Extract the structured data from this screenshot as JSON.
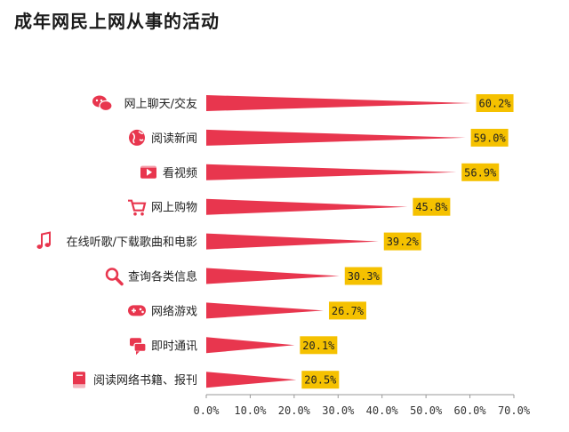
{
  "title": "成年网民上网从事的活动",
  "colors": {
    "bar": "#e8364e",
    "label_bg": "#f5c100",
    "icon": "#e8364e",
    "axis": "#999999"
  },
  "chart_data": {
    "type": "bar",
    "orientation": "horizontal",
    "categories": [
      "网上聊天/交友",
      "阅读新闻",
      "看视频",
      "网上购物",
      "在线听歌/下载歌曲和电影",
      "查询各类信息",
      "网络游戏",
      "即时通讯",
      "阅读网络书籍、报刊"
    ],
    "icons": [
      "chat-icon",
      "globe-icon",
      "video-icon",
      "shopping-cart-icon",
      "music-note-icon",
      "magnifier-icon",
      "gamepad-icon",
      "message-icon",
      "book-icon"
    ],
    "values": [
      60.2,
      59.0,
      56.9,
      45.8,
      39.2,
      30.3,
      26.7,
      20.1,
      20.5
    ],
    "value_labels": [
      "60.2%",
      "59.0%",
      "56.9%",
      "45.8%",
      "39.2%",
      "30.3%",
      "26.7%",
      "20.1%",
      "20.5%"
    ],
    "xlim": [
      0,
      70
    ],
    "xticks": [
      "0.0%",
      "10.0%",
      "20.0%",
      "30.0%",
      "40.0%",
      "50.0%",
      "60.0%",
      "70.0%"
    ],
    "xlabel": "",
    "ylabel": "",
    "grid": false
  }
}
